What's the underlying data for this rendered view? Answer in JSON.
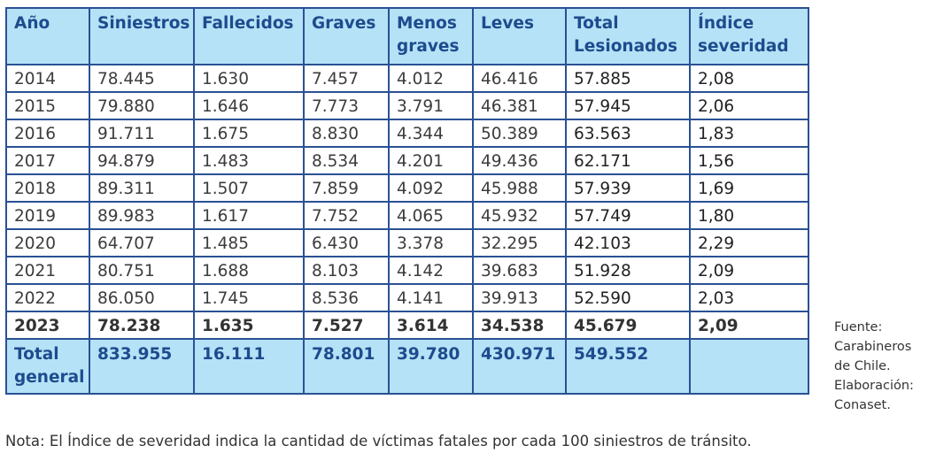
{
  "table": {
    "headers": [
      "Año",
      "Siniestros",
      "Fallecidos",
      "Graves",
      "Menos graves",
      "Leves",
      "Total Lesionados",
      "Índice severidad"
    ],
    "rows": [
      [
        "2014",
        "78.445",
        "1.630",
        "7.457",
        "4.012",
        "46.416",
        "57.885",
        "2,08"
      ],
      [
        "2015",
        "79.880",
        "1.646",
        "7.773",
        "3.791",
        "46.381",
        "57.945",
        "2,06"
      ],
      [
        "2016",
        "91.711",
        "1.675",
        "8.830",
        "4.344",
        "50.389",
        "63.563",
        "1,83"
      ],
      [
        "2017",
        "94.879",
        "1.483",
        "8.534",
        "4.201",
        "49.436",
        "62.171",
        "1,56"
      ],
      [
        "2018",
        "89.311",
        "1.507",
        "7.859",
        "4.092",
        "45.988",
        "57.939",
        "1,69"
      ],
      [
        "2019",
        "89.983",
        "1.617",
        "7.752",
        "4.065",
        "45.932",
        "57.749",
        "1,80"
      ],
      [
        "2020",
        "64.707",
        "1.485",
        "6.430",
        "3.378",
        "32.295",
        "42.103",
        "2,29"
      ],
      [
        "2021",
        "80.751",
        "1.688",
        "8.103",
        "4.142",
        "39.683",
        "51.928",
        "2,09"
      ],
      [
        "2022",
        "86.050",
        "1.745",
        "8.536",
        "4.141",
        "39.913",
        "52.590",
        "2,03"
      ],
      [
        "2023",
        "78.238",
        "1.635",
        "7.527",
        "3.614",
        "34.538",
        "45.679",
        "2,09"
      ]
    ],
    "total": [
      "Total general",
      "833.955",
      "16.111",
      "78.801",
      "39.780",
      "430.971",
      "549.552",
      ""
    ]
  },
  "source": {
    "lines": [
      "Fuente:",
      "Carabineros",
      "de Chile.",
      "Elaboración:",
      "Conaset."
    ]
  },
  "note": "Nota: El Índice de severidad indica la cantidad de víctimas fatales por cada 100 siniestros de tránsito.",
  "colors": {
    "header_bg": "#b5e2f6",
    "header_text": "#1e4b8e",
    "border": "#2a5194"
  }
}
